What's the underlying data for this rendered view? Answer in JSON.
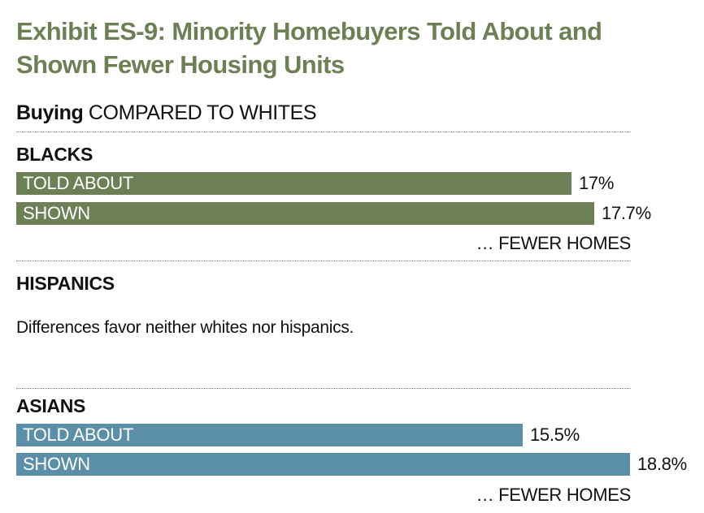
{
  "title": "Exhibit ES-9: Minority Homebuyers Told About and Shown Fewer Housing Units",
  "subtitle": {
    "bold": "Buying",
    "rest": "COMPARED TO WHITES"
  },
  "colors": {
    "title": "#6d7f55",
    "blacks_bar": "#6d7f55",
    "asians_bar": "#5b8ea8"
  },
  "groups": {
    "blacks": {
      "label": "BLACKS",
      "fewer_label": "… FEWER HOMES"
    },
    "hispanics": {
      "label": "HISPANICS",
      "note": "Differences favor neither whites nor hispanics."
    },
    "asians": {
      "label": "ASIANS",
      "fewer_label": "… FEWER HOMES"
    }
  },
  "chart_data": {
    "type": "bar",
    "orientation": "horizontal",
    "title": "Exhibit ES-9: Minority Homebuyers Told About and Shown Fewer Housing Units",
    "subtitle": "Buying COMPARED TO WHITES",
    "unit": "%",
    "groups": [
      {
        "name": "BLACKS",
        "bars": [
          {
            "label": "TOLD ABOUT",
            "value": 17.0,
            "display": "17%"
          },
          {
            "label": "SHOWN",
            "value": 17.7,
            "display": "17.7%"
          }
        ],
        "annotation": "… FEWER HOMES"
      },
      {
        "name": "HISPANICS",
        "bars": [],
        "annotation": "Differences favor neither whites nor hispanics."
      },
      {
        "name": "ASIANS",
        "bars": [
          {
            "label": "TOLD ABOUT",
            "value": 15.5,
            "display": "15.5%"
          },
          {
            "label": "SHOWN",
            "value": 18.8,
            "display": "18.8%"
          }
        ],
        "annotation": "… FEWER HOMES"
      }
    ]
  }
}
